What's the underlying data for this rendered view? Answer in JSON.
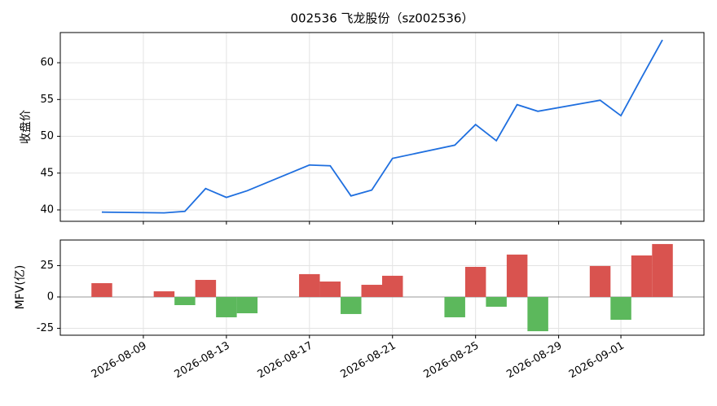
{
  "chart_data": [
    {
      "type": "line",
      "title": "002536 飞龙股份（sz002536）",
      "ylabel": "收盘价",
      "x": [
        "2026-08-07",
        "2026-08-10",
        "2026-08-11",
        "2026-08-12",
        "2026-08-13",
        "2026-08-14",
        "2026-08-17",
        "2026-08-18",
        "2026-08-19",
        "2026-08-20",
        "2026-08-21",
        "2026-08-24",
        "2026-08-25",
        "2026-08-26",
        "2026-08-27",
        "2026-08-28",
        "2026-08-31",
        "2026-09-01",
        "2026-09-02",
        "2026-09-03"
      ],
      "values": [
        39.7,
        39.6,
        39.8,
        42.9,
        41.7,
        42.6,
        46.1,
        46.0,
        41.9,
        42.7,
        47.0,
        48.8,
        51.6,
        49.4,
        54.3,
        53.4,
        54.9,
        52.8,
        58.0,
        63.1
      ],
      "color": "#1f6fdf",
      "xlim": [
        "2026-08-05",
        "2026-09-05"
      ],
      "ylim": [
        38.45,
        64.1
      ],
      "yticks": [
        40,
        45,
        50,
        55,
        60
      ],
      "grid": true
    },
    {
      "type": "bar",
      "ylabel": "MFV(亿)",
      "x": [
        "2026-08-07",
        "2026-08-10",
        "2026-08-11",
        "2026-08-12",
        "2026-08-13",
        "2026-08-14",
        "2026-08-17",
        "2026-08-18",
        "2026-08-19",
        "2026-08-20",
        "2026-08-21",
        "2026-08-24",
        "2026-08-25",
        "2026-08-26",
        "2026-08-27",
        "2026-08-28",
        "2026-08-31",
        "2026-09-01",
        "2026-09-02",
        "2026-09-03"
      ],
      "values": [
        11.0,
        4.5,
        -6.5,
        13.6,
        -16.2,
        -13.0,
        18.2,
        12.3,
        -13.6,
        9.7,
        16.9,
        -16.2,
        24.0,
        -7.8,
        33.8,
        -27.3,
        24.7,
        -18.2,
        33.1,
        42.2
      ],
      "color_positive": "#d9534f",
      "color_negative": "#5cb85c",
      "xlim": [
        "2026-08-05",
        "2026-09-05"
      ],
      "ylim": [
        -30.5,
        45.4
      ],
      "yticks": [
        -25,
        0,
        25
      ],
      "xticks": [
        "2026-08-09",
        "2026-08-13",
        "2026-08-17",
        "2026-08-21",
        "2026-08-25",
        "2026-08-29",
        "2026-09-01"
      ],
      "grid": true
    }
  ]
}
